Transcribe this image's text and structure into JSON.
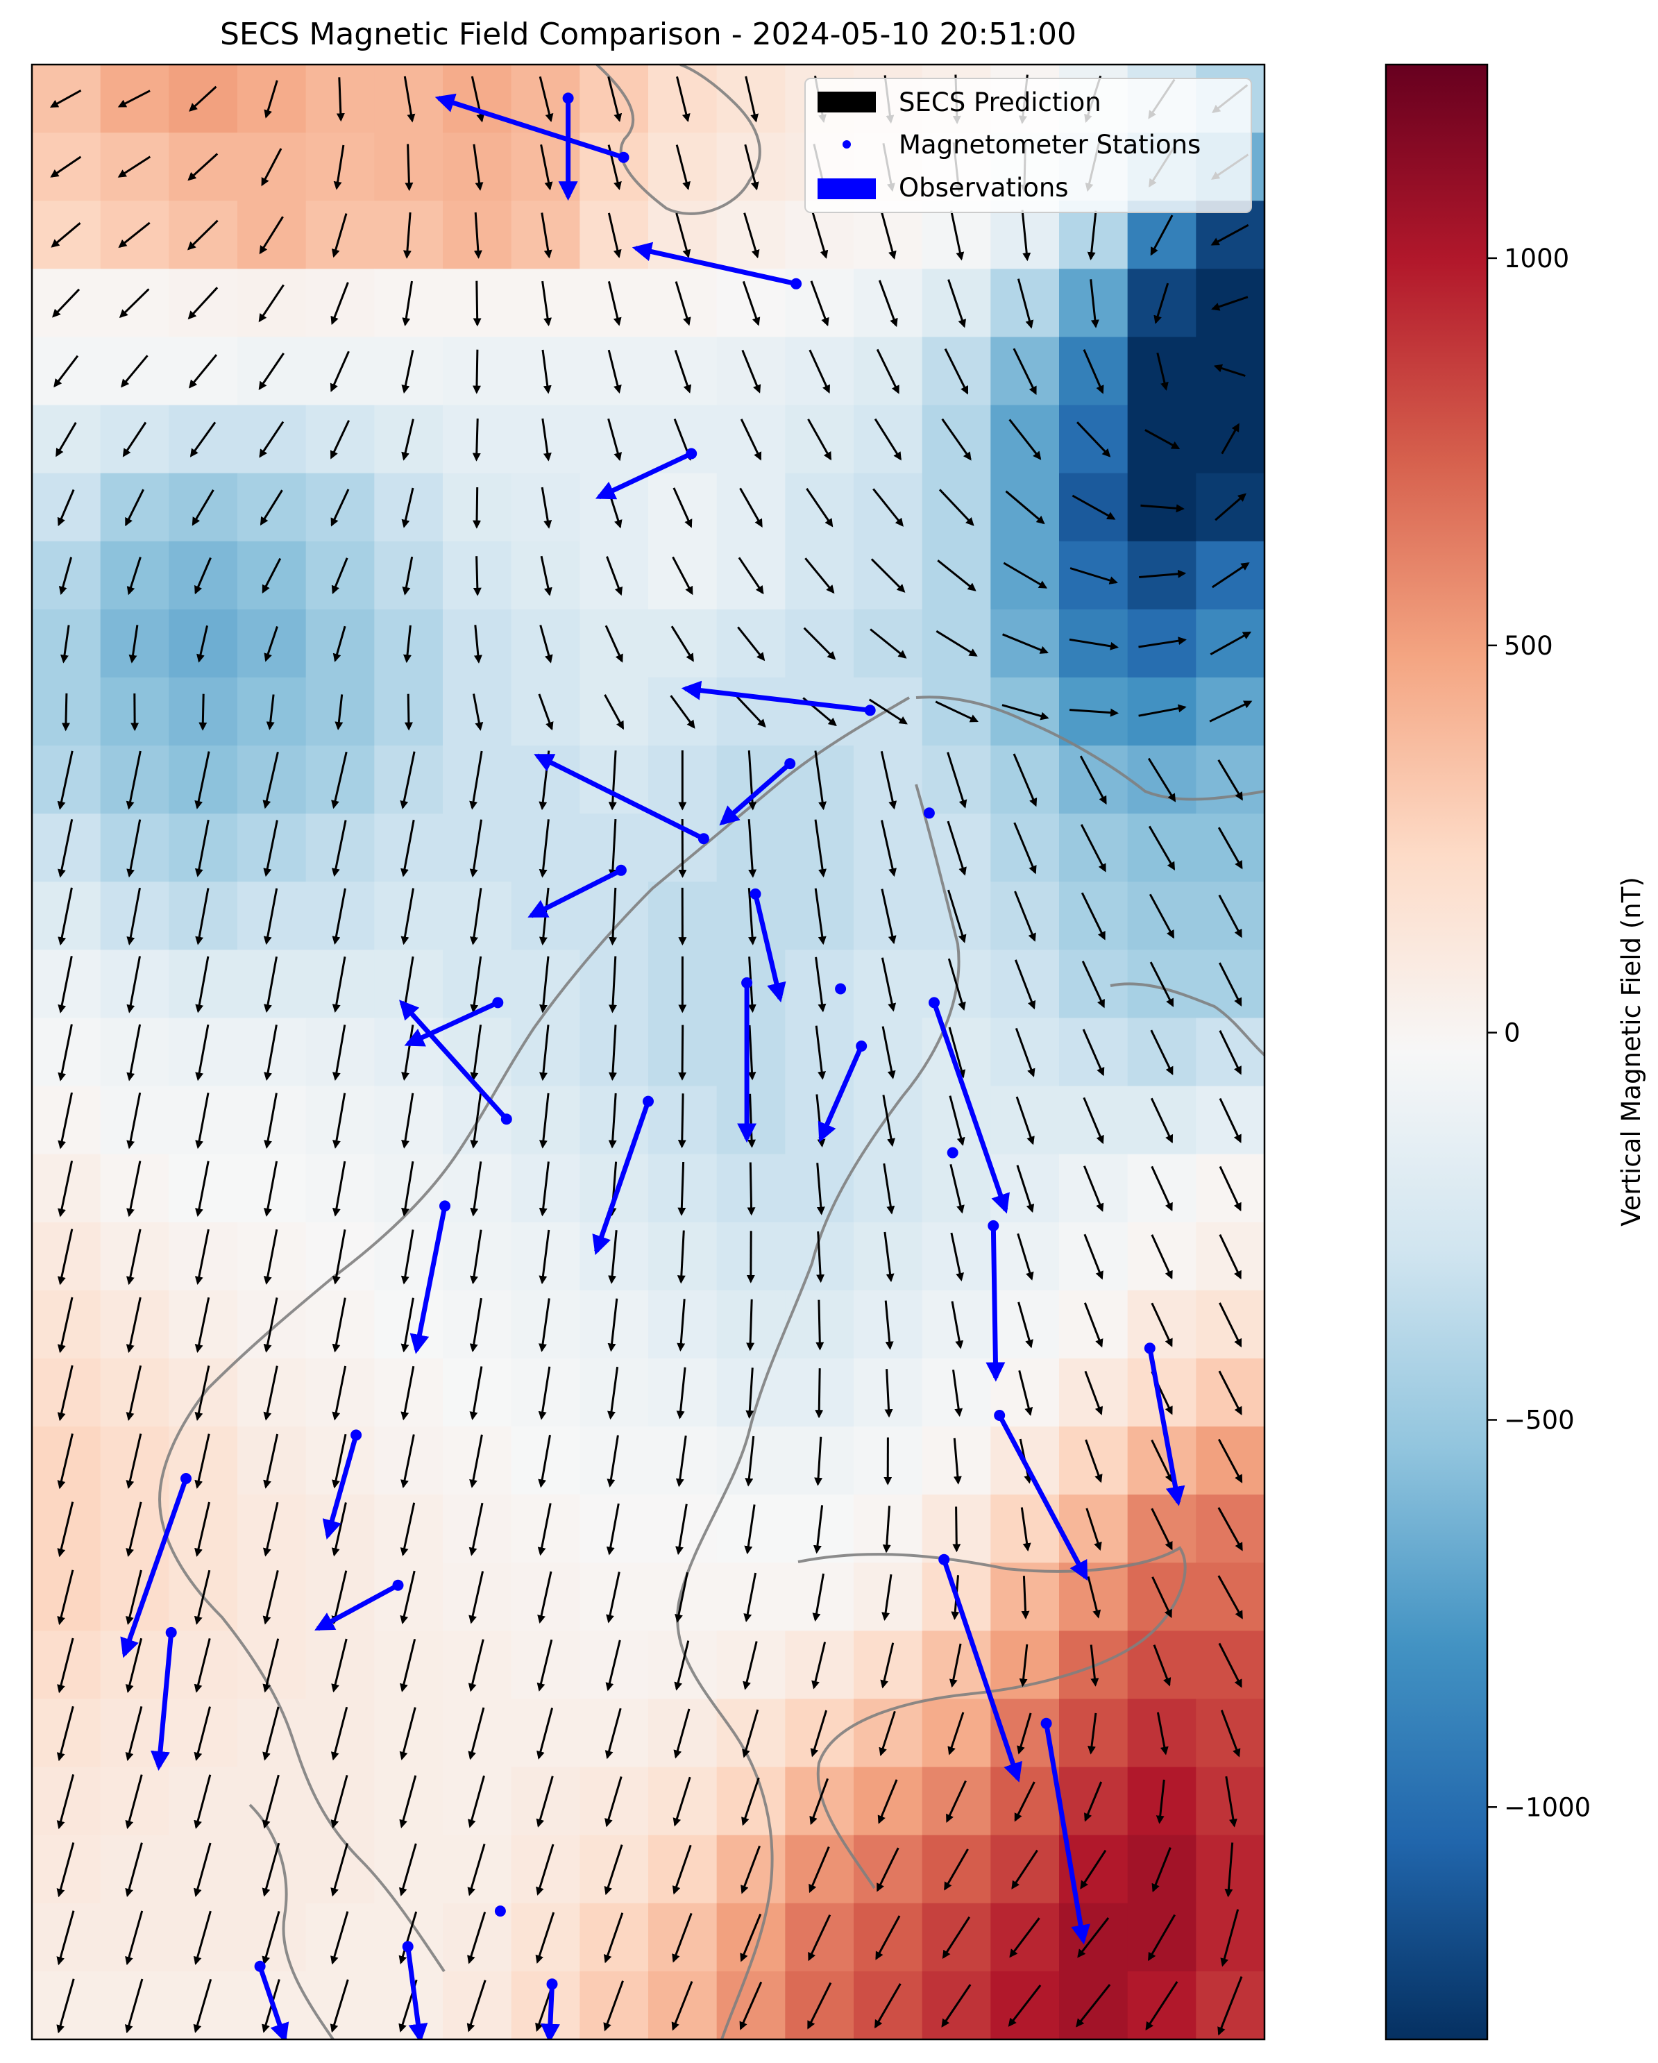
{
  "chart_data": {
    "type": "heatmap",
    "title": "SECS Magnetic Field Comparison - 2024-05-10 20:51:00",
    "colorbar": {
      "label": "Vertical Magnetic Field (nT)",
      "min": -1300,
      "max": 1250,
      "ticks": [
        {
          "value": 1000,
          "label": "1000"
        },
        {
          "value": 500,
          "label": "500"
        },
        {
          "value": 0,
          "label": "0"
        },
        {
          "value": -500,
          "label": "−500"
        },
        {
          "value": -1000,
          "label": "−1000"
        }
      ],
      "colormap": "RdBu_r"
    },
    "legend": {
      "placement": "top-right",
      "entries": [
        {
          "label": "SECS Prediction",
          "color": "#000000",
          "marker": "rect"
        },
        {
          "label": "Magnetometer Stations",
          "color": "#0000ff",
          "marker": "dot"
        },
        {
          "label": "Observations",
          "color": "#0000ff",
          "marker": "rect"
        }
      ]
    },
    "grid_shape": [
      18,
      29
    ],
    "heatmap_nT": [
      [
        350,
        450,
        500,
        450,
        400,
        400,
        450,
        400,
        300,
        200,
        150,
        100,
        80,
        50,
        0,
        -100,
        -250,
        -400
      ],
      [
        300,
        350,
        400,
        400,
        380,
        400,
        420,
        380,
        250,
        150,
        100,
        80,
        50,
        0,
        -100,
        -250,
        -500,
        -650
      ],
      [
        250,
        300,
        350,
        400,
        350,
        350,
        400,
        350,
        200,
        100,
        50,
        20,
        0,
        -50,
        -150,
        -400,
        -900,
        -1200
      ],
      [
        0,
        0,
        20,
        30,
        20,
        0,
        0,
        0,
        0,
        0,
        -20,
        -50,
        -100,
        -200,
        -400,
        -700,
        -1200,
        -1300
      ],
      [
        -50,
        -50,
        -50,
        -80,
        -80,
        -80,
        -100,
        -100,
        -100,
        -100,
        -120,
        -150,
        -200,
        -350,
        -600,
        -900,
        -1300,
        -1300
      ],
      [
        -200,
        -250,
        -300,
        -300,
        -250,
        -200,
        -150,
        -150,
        -150,
        -150,
        -150,
        -200,
        -250,
        -400,
        -700,
        -1000,
        -1300,
        -1300
      ],
      [
        -300,
        -450,
        -500,
        -450,
        -400,
        -300,
        -200,
        -180,
        -150,
        -100,
        -150,
        -250,
        -300,
        -400,
        -700,
        -1100,
        -1300,
        -1250
      ],
      [
        -400,
        -550,
        -600,
        -550,
        -450,
        -350,
        -250,
        -200,
        -150,
        -100,
        -150,
        -250,
        -300,
        -400,
        -700,
        -1000,
        -1150,
        -1000
      ],
      [
        -450,
        -600,
        -650,
        -600,
        -500,
        -400,
        -300,
        -250,
        -200,
        -200,
        -250,
        -300,
        -350,
        -400,
        -650,
        -900,
        -1000,
        -850
      ],
      [
        -450,
        -550,
        -600,
        -550,
        -500,
        -400,
        -300,
        -250,
        -200,
        -250,
        -300,
        -300,
        -300,
        -400,
        -550,
        -750,
        -800,
        -700
      ],
      [
        -400,
        -500,
        -550,
        -500,
        -450,
        -350,
        -300,
        -300,
        -250,
        -300,
        -350,
        -350,
        -300,
        -350,
        -450,
        -600,
        -650,
        -600
      ],
      [
        -300,
        -400,
        -450,
        -400,
        -350,
        -300,
        -300,
        -300,
        -300,
        -300,
        -350,
        -350,
        -300,
        -300,
        -400,
        -500,
        -550,
        -550
      ],
      [
        -200,
        -300,
        -350,
        -300,
        -300,
        -250,
        -250,
        -300,
        -300,
        -350,
        -350,
        -350,
        -300,
        -300,
        -350,
        -450,
        -500,
        -500
      ],
      [
        -100,
        -150,
        -200,
        -200,
        -200,
        -200,
        -250,
        -250,
        -300,
        -350,
        -350,
        -300,
        -250,
        -250,
        -300,
        -400,
        -450,
        -450
      ],
      [
        -50,
        -80,
        -100,
        -100,
        -120,
        -150,
        -200,
        -250,
        -300,
        -350,
        -350,
        -300,
        -250,
        -200,
        -250,
        -300,
        -350,
        -300
      ],
      [
        0,
        -50,
        -50,
        -50,
        -80,
        -100,
        -150,
        -200,
        -250,
        -300,
        -350,
        -300,
        -250,
        -200,
        -200,
        -200,
        -200,
        -150
      ],
      [
        50,
        0,
        -30,
        -30,
        -50,
        -80,
        -100,
        -150,
        -200,
        -250,
        -300,
        -300,
        -250,
        -200,
        -150,
        -100,
        -50,
        0
      ],
      [
        100,
        50,
        20,
        0,
        -20,
        -50,
        -80,
        -100,
        -150,
        -200,
        -250,
        -250,
        -200,
        -150,
        -100,
        -50,
        0,
        50
      ],
      [
        150,
        100,
        50,
        20,
        0,
        -30,
        -50,
        -80,
        -100,
        -150,
        -200,
        -200,
        -150,
        -100,
        -50,
        0,
        100,
        150
      ],
      [
        200,
        150,
        100,
        50,
        30,
        0,
        -30,
        -50,
        -80,
        -100,
        -150,
        -150,
        -100,
        -50,
        0,
        100,
        200,
        300
      ],
      [
        250,
        200,
        150,
        80,
        50,
        20,
        0,
        -30,
        -50,
        -50,
        -80,
        -80,
        -50,
        0,
        100,
        250,
        400,
        500
      ],
      [
        250,
        200,
        150,
        100,
        80,
        50,
        20,
        0,
        -20,
        -20,
        -30,
        -30,
        0,
        100,
        250,
        400,
        600,
        650
      ],
      [
        250,
        200,
        150,
        100,
        80,
        50,
        30,
        20,
        0,
        0,
        0,
        0,
        50,
        200,
        400,
        550,
        700,
        700
      ],
      [
        200,
        150,
        120,
        100,
        80,
        60,
        50,
        30,
        20,
        30,
        50,
        100,
        200,
        350,
        500,
        700,
        800,
        800
      ],
      [
        150,
        120,
        100,
        80,
        80,
        60,
        50,
        50,
        50,
        80,
        150,
        250,
        350,
        450,
        650,
        800,
        900,
        850
      ],
      [
        120,
        100,
        80,
        80,
        80,
        60,
        50,
        80,
        100,
        150,
        250,
        400,
        500,
        600,
        750,
        900,
        1000,
        900
      ],
      [
        100,
        80,
        80,
        80,
        80,
        60,
        60,
        100,
        150,
        250,
        400,
        550,
        650,
        750,
        850,
        1000,
        1050,
        950
      ],
      [
        80,
        80,
        80,
        80,
        60,
        60,
        80,
        150,
        250,
        350,
        500,
        650,
        750,
        850,
        950,
        1050,
        1050,
        950
      ],
      [
        60,
        60,
        60,
        60,
        60,
        60,
        100,
        200,
        300,
        400,
        550,
        700,
        800,
        900,
        1000,
        1050,
        1000,
        900
      ]
    ],
    "observations": [
      {
        "start": [
          0.435,
          0.017
        ],
        "end": [
          0.435,
          0.067
        ]
      },
      {
        "start": [
          0.48,
          0.047
        ],
        "end": [
          0.33,
          0.017
        ]
      },
      {
        "start": [
          0.62,
          0.111
        ],
        "end": [
          0.49,
          0.093
        ]
      },
      {
        "start": [
          0.535,
          0.197
        ],
        "end": [
          0.46,
          0.219
        ]
      },
      {
        "start": [
          0.68,
          0.327
        ],
        "end": [
          0.53,
          0.316
        ]
      },
      {
        "start": [
          0.615,
          0.354
        ],
        "end": [
          0.56,
          0.384
        ]
      },
      {
        "start": [
          0.545,
          0.392
        ],
        "end": [
          0.41,
          0.35
        ]
      },
      {
        "start": [
          0.478,
          0.408
        ],
        "end": [
          0.405,
          0.431
        ]
      },
      {
        "start": [
          0.587,
          0.42
        ],
        "end": [
          0.607,
          0.473
        ]
      },
      {
        "start": [
          0.58,
          0.465
        ],
        "end": [
          0.58,
          0.544
        ]
      },
      {
        "start": [
          0.673,
          0.497
        ],
        "end": [
          0.64,
          0.544
        ]
      },
      {
        "start": [
          0.732,
          0.475
        ],
        "end": [
          0.79,
          0.58
        ]
      },
      {
        "start": [
          0.378,
          0.475
        ],
        "end": [
          0.305,
          0.496
        ]
      },
      {
        "start": [
          0.385,
          0.534
        ],
        "end": [
          0.3,
          0.475
        ]
      },
      {
        "start": [
          0.5,
          0.525
        ],
        "end": [
          0.458,
          0.601
        ]
      },
      {
        "start": [
          0.335,
          0.578
        ],
        "end": [
          0.312,
          0.651
        ]
      },
      {
        "start": [
          0.78,
          0.588
        ],
        "end": [
          0.782,
          0.665
        ]
      },
      {
        "start": [
          0.907,
          0.65
        ],
        "end": [
          0.93,
          0.728
        ]
      },
      {
        "start": [
          0.785,
          0.684
        ],
        "end": [
          0.855,
          0.766
        ]
      },
      {
        "start": [
          0.263,
          0.694
        ],
        "end": [
          0.24,
          0.745
        ]
      },
      {
        "start": [
          0.125,
          0.716
        ],
        "end": [
          0.075,
          0.805
        ]
      },
      {
        "start": [
          0.297,
          0.77
        ],
        "end": [
          0.232,
          0.792
        ]
      },
      {
        "start": [
          0.113,
          0.794
        ],
        "end": [
          0.103,
          0.862
        ]
      },
      {
        "start": [
          0.74,
          0.757
        ],
        "end": [
          0.8,
          0.868
        ]
      },
      {
        "start": [
          0.823,
          0.84
        ],
        "end": [
          0.853,
          0.95
        ]
      },
      {
        "start": [
          0.185,
          0.963
        ],
        "end": [
          0.205,
          1.0
        ]
      },
      {
        "start": [
          0.305,
          0.953
        ],
        "end": [
          0.315,
          1.0
        ]
      },
      {
        "start": [
          0.422,
          0.972
        ],
        "end": [
          0.42,
          1.0
        ]
      }
    ],
    "stations_only": [
      [
        0.728,
        0.379
      ],
      [
        0.656,
        0.468
      ],
      [
        0.747,
        0.551
      ],
      [
        0.38,
        0.935
      ]
    ]
  }
}
